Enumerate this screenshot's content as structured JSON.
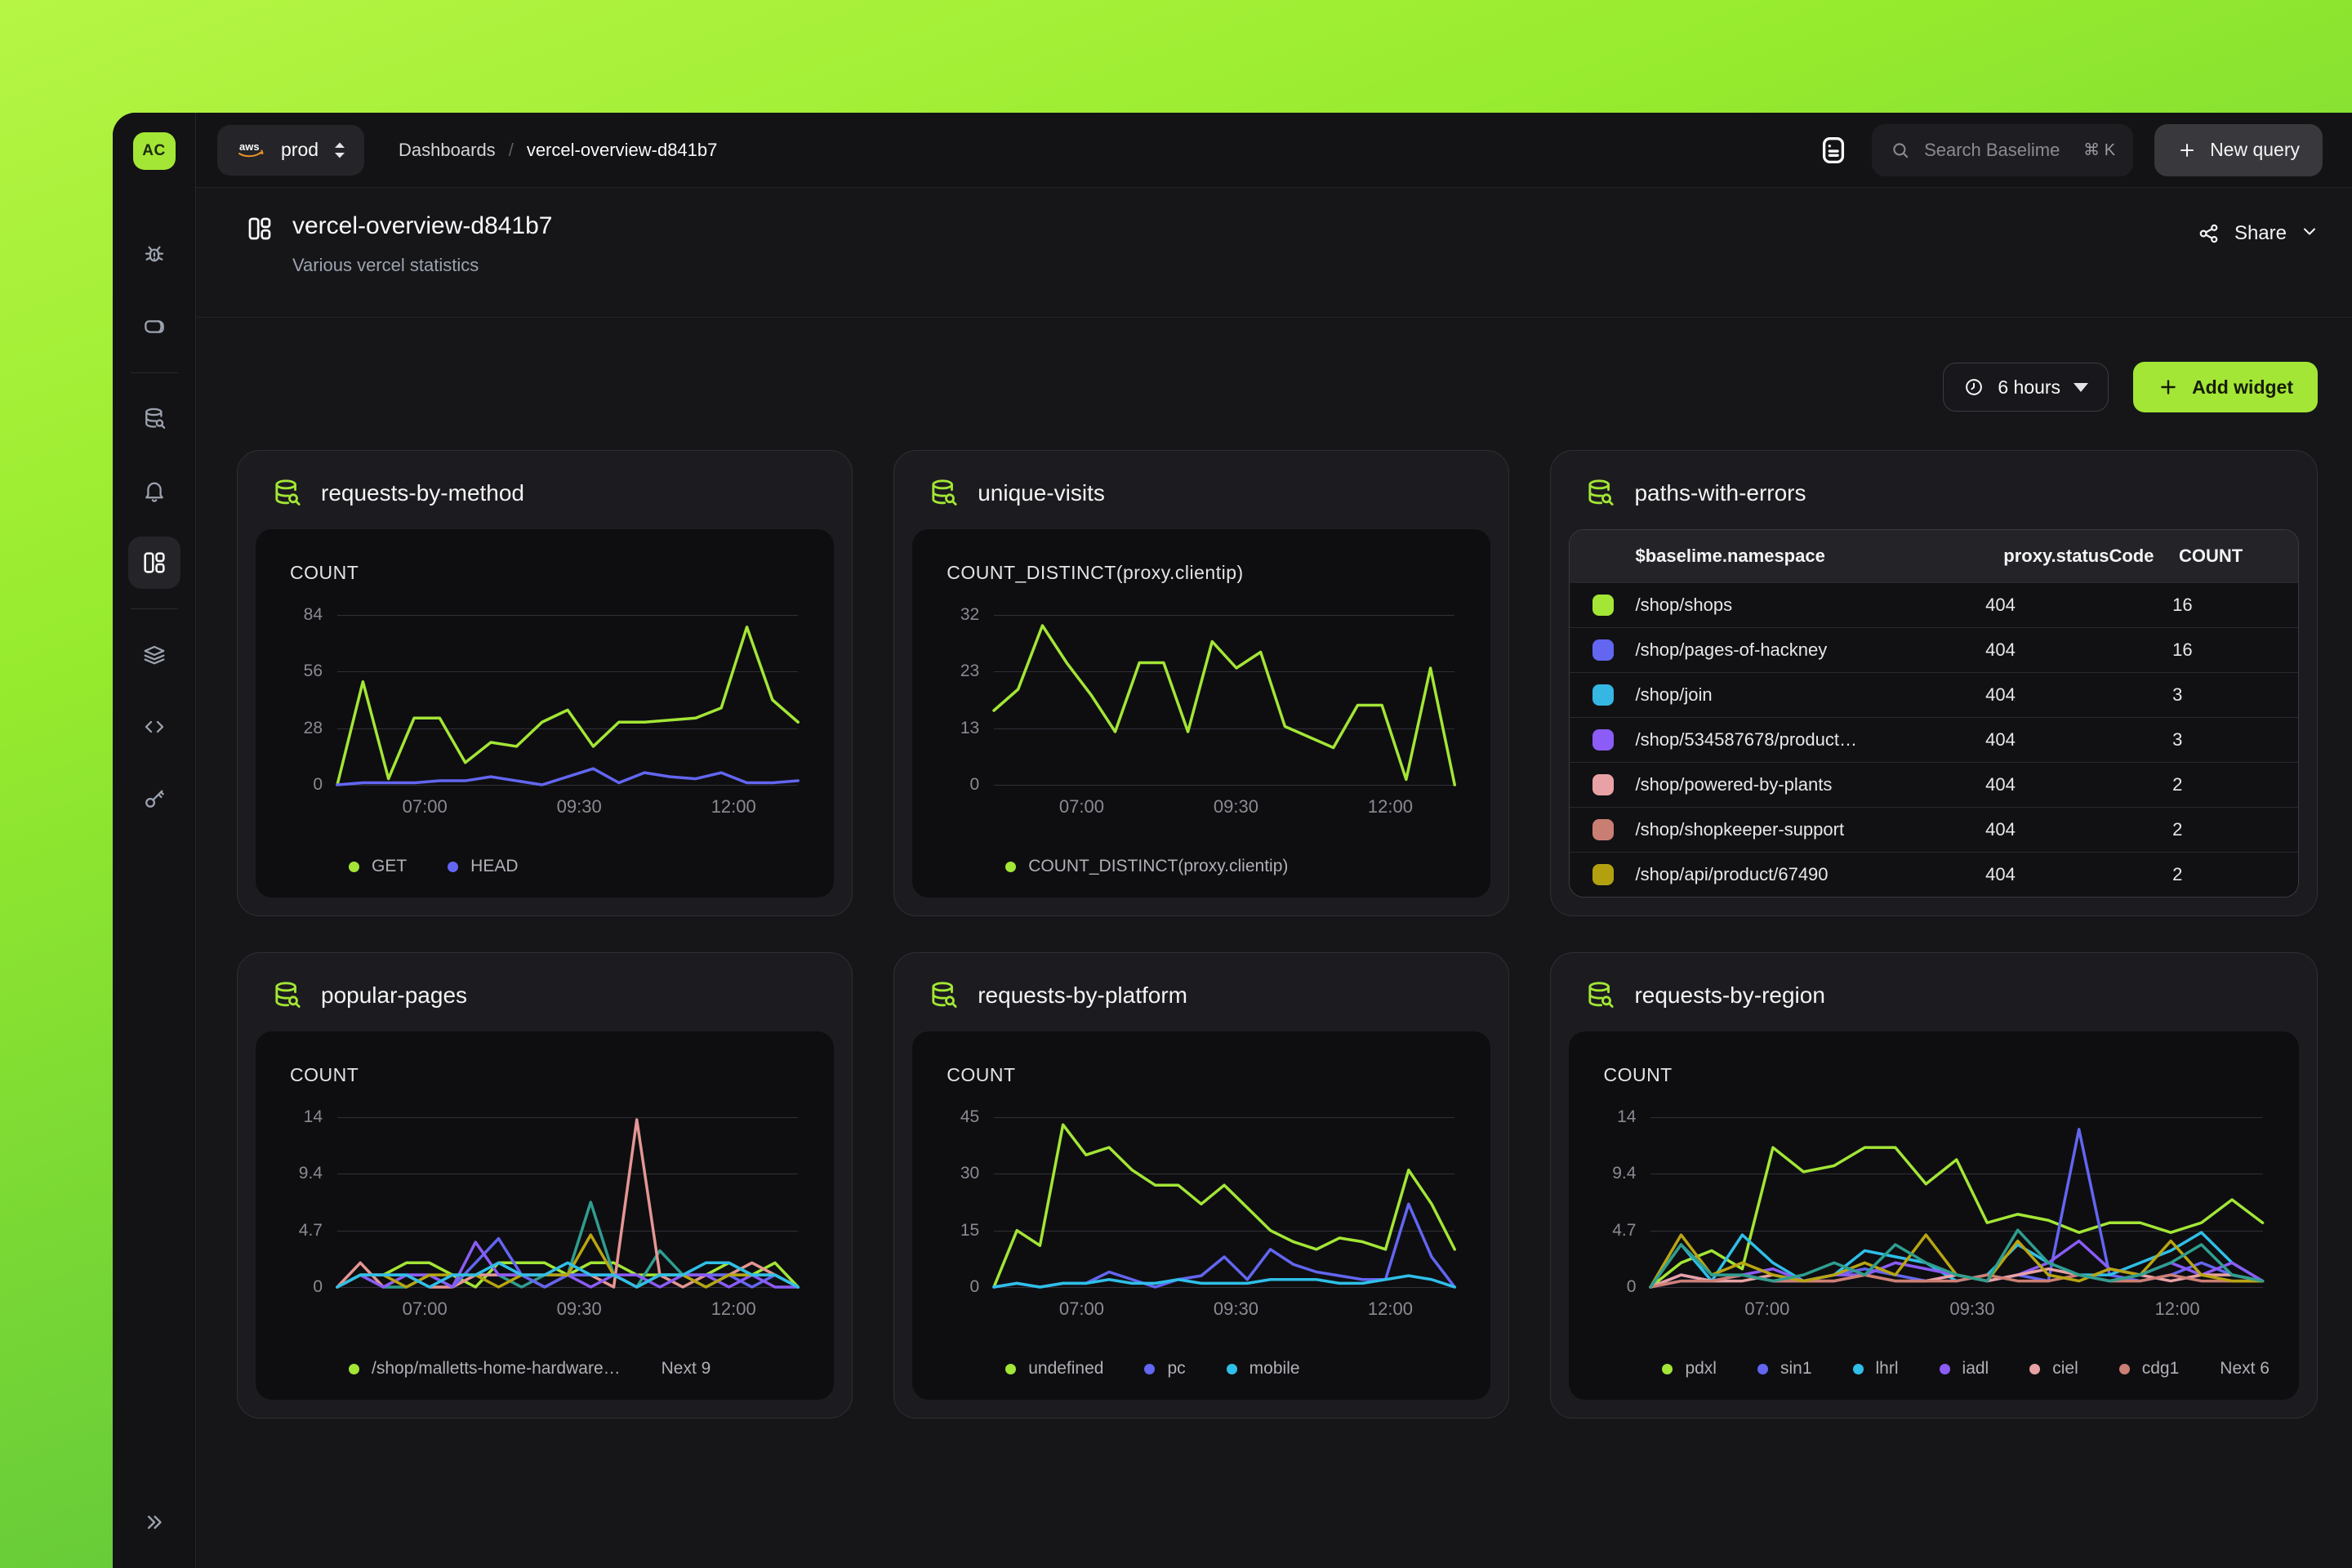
{
  "accent": "#a3e635",
  "sidebar": {
    "avatar": "AC",
    "icons": [
      "bug-icon",
      "box-icon",
      "database-search-icon",
      "bell-icon",
      "dashboards-icon",
      "layers-icon",
      "code-icon",
      "key-icon",
      "expand-icon"
    ]
  },
  "topbar": {
    "env": "prod",
    "breadcrumb": {
      "root": "Dashboards",
      "separator": "/",
      "current": "vercel-overview-d841b7"
    },
    "search": {
      "placeholder": "Search Baselime",
      "shortcut": "⌘ K"
    },
    "new_query_label": "New query"
  },
  "dashboard": {
    "title": "vercel-overview-d841b7",
    "subtitle": "Various vercel statistics",
    "share_label": "Share",
    "time_range": "6 hours",
    "add_widget_label": "Add widget"
  },
  "widgets": [
    {
      "title": "requests-by-method",
      "type": "line",
      "chart_data": {
        "type": "line",
        "metric": "COUNT",
        "y_ticks": [
          "84",
          "56",
          "28",
          "0"
        ],
        "ymax": 84,
        "x_ticks": [
          {
            "label": "07:00",
            "f": 0.19
          },
          {
            "label": "09:30",
            "f": 0.525
          },
          {
            "label": "12:00",
            "f": 0.86
          }
        ],
        "legend_extra": null,
        "series": [
          {
            "name": "GET",
            "color": "#a3e635",
            "in_legend": true,
            "values": [
              0,
              51,
              3,
              33,
              33,
              11,
              21,
              19,
              31,
              37,
              19,
              31,
              31,
              32,
              33,
              38,
              78,
              42,
              31
            ]
          },
          {
            "name": "HEAD",
            "color": "#6366f1",
            "in_legend": true,
            "values": [
              0,
              1,
              1,
              1,
              2,
              2,
              4,
              2,
              0,
              4,
              8,
              1,
              6,
              4,
              3,
              6,
              1,
              1,
              2
            ]
          }
        ]
      }
    },
    {
      "title": "unique-visits",
      "type": "line",
      "chart_data": {
        "type": "line",
        "metric": "COUNT_DISTINCT(proxy.clientip)",
        "y_ticks": [
          "32",
          "23",
          "13",
          "0"
        ],
        "ymax": 32,
        "x_ticks": [
          {
            "label": "07:00",
            "f": 0.19
          },
          {
            "label": "09:30",
            "f": 0.525
          },
          {
            "label": "12:00",
            "f": 0.86
          }
        ],
        "legend_extra": null,
        "series": [
          {
            "name": "COUNT_DISTINCT(proxy.clientip)",
            "color": "#a3e635",
            "in_legend": true,
            "values": [
              14,
              18,
              30,
              23,
              17,
              10,
              23,
              23,
              10,
              27,
              22,
              25,
              11,
              9,
              7,
              15,
              15,
              1,
              22,
              0
            ]
          }
        ]
      }
    },
    {
      "title": "paths-with-errors",
      "type": "table",
      "table": {
        "columns": [
          "$baselime.namespace",
          "proxy.statusCode",
          "COUNT"
        ],
        "rows": [
          {
            "color": "#a3e635",
            "namespace": "/shop/shops",
            "statusCode": "404",
            "count": "16"
          },
          {
            "color": "#6366f1",
            "namespace": "/shop/pages-of-hackney",
            "statusCode": "404",
            "count": "16"
          },
          {
            "color": "#35b6e3",
            "namespace": "/shop/join",
            "statusCode": "404",
            "count": "3"
          },
          {
            "color": "#8b5cf6",
            "namespace": "/shop/534587678/product…",
            "statusCode": "404",
            "count": "3"
          },
          {
            "color": "#e8a2a5",
            "namespace": "/shop/powered-by-plants",
            "statusCode": "404",
            "count": "2"
          },
          {
            "color": "#c97e73",
            "namespace": "/shop/shopkeeper-support",
            "statusCode": "404",
            "count": "2"
          },
          {
            "color": "#b3a00f",
            "namespace": "/shop/api/product/67490",
            "statusCode": "404",
            "count": "2"
          }
        ]
      }
    },
    {
      "title": "popular-pages",
      "type": "line",
      "chart_data": {
        "type": "line",
        "metric": "COUNT",
        "y_ticks": [
          "14",
          "9.4",
          "4.7",
          "0"
        ],
        "ymax": 14,
        "x_ticks": [
          {
            "label": "07:00",
            "f": 0.19
          },
          {
            "label": "09:30",
            "f": 0.525
          },
          {
            "label": "12:00",
            "f": 0.86
          }
        ],
        "legend_extra": "Next 9",
        "series": [
          {
            "name": "/shop/malletts-home-hardware…",
            "color": "#a3e635",
            "in_legend": true,
            "values": [
              0,
              1,
              1,
              2,
              2,
              1,
              0,
              2,
              2,
              2,
              1,
              2,
              2,
              1,
              1,
              1,
              1,
              2,
              1,
              2,
              0
            ]
          },
          {
            "name": "",
            "color": "#2f9e8f",
            "in_legend": false,
            "values": [
              0,
              1,
              0,
              0,
              1,
              0,
              1,
              1,
              0,
              1,
              1,
              7,
              1,
              0,
              3,
              1,
              0,
              1,
              1,
              1,
              0
            ]
          },
          {
            "name": "",
            "color": "#e59693",
            "in_legend": false,
            "values": [
              0,
              2,
              0,
              1,
              0,
              0,
              1,
              1,
              1,
              0,
              1,
              1,
              0,
              13.8,
              1,
              0,
              1,
              1,
              2,
              1,
              0
            ]
          },
          {
            "name": "",
            "color": "#6366f1",
            "in_legend": false,
            "values": [
              0,
              1,
              1,
              1,
              1,
              0,
              2,
              4,
              1,
              0,
              1,
              1,
              1,
              0,
              1,
              1,
              1,
              1,
              0,
              1,
              0
            ]
          },
          {
            "name": "",
            "color": "#8b5cf6",
            "in_legend": false,
            "values": [
              0,
              1,
              0,
              1,
              1,
              0,
              3.7,
              1,
              1,
              1,
              1,
              0,
              1,
              1,
              0,
              1,
              1,
              0,
              1,
              0,
              0
            ]
          },
          {
            "name": "",
            "color": "#b8a512",
            "in_legend": false,
            "values": [
              0,
              1,
              1,
              0,
              1,
              1,
              1,
              0,
              1,
              1,
              1,
              4.3,
              1,
              0,
              1,
              1,
              0,
              1,
              1,
              1,
              0
            ]
          },
          {
            "name": "",
            "color": "#2fbfe8",
            "in_legend": false,
            "values": [
              0,
              1,
              1,
              1,
              0,
              1,
              1,
              2,
              1,
              1,
              2,
              1,
              1,
              0,
              1,
              1,
              2,
              2,
              1,
              1,
              0
            ]
          }
        ]
      }
    },
    {
      "title": "requests-by-platform",
      "type": "line",
      "chart_data": {
        "type": "line",
        "metric": "COUNT",
        "y_ticks": [
          "45",
          "30",
          "15",
          "0"
        ],
        "ymax": 45,
        "x_ticks": [
          {
            "label": "07:00",
            "f": 0.19
          },
          {
            "label": "09:30",
            "f": 0.525
          },
          {
            "label": "12:00",
            "f": 0.86
          }
        ],
        "legend_extra": null,
        "series": [
          {
            "name": "undefined",
            "color": "#a3e635",
            "in_legend": true,
            "values": [
              0,
              15,
              11,
              43,
              35,
              37,
              31,
              27,
              27,
              22,
              27,
              21,
              15,
              12,
              10,
              13,
              12,
              10,
              31,
              22,
              10
            ]
          },
          {
            "name": "pc",
            "color": "#6366f1",
            "in_legend": true,
            "values": [
              0,
              1,
              0,
              1,
              1,
              4,
              2,
              0,
              2,
              3,
              8,
              2,
              10,
              6,
              4,
              3,
              2,
              2,
              22,
              8,
              0
            ]
          },
          {
            "name": "mobile",
            "color": "#2fbfe8",
            "in_legend": true,
            "values": [
              0,
              1,
              0,
              1,
              1,
              2,
              1,
              1,
              2,
              1,
              1,
              1,
              2,
              2,
              2,
              1,
              1,
              2,
              3,
              2,
              0
            ]
          }
        ]
      }
    },
    {
      "title": "requests-by-region",
      "type": "line",
      "chart_data": {
        "type": "line",
        "metric": "COUNT",
        "y_ticks": [
          "14",
          "9.4",
          "4.7",
          "0"
        ],
        "ymax": 14,
        "x_ticks": [
          {
            "label": "07:00",
            "f": 0.19
          },
          {
            "label": "09:30",
            "f": 0.525
          },
          {
            "label": "12:00",
            "f": 0.86
          }
        ],
        "legend_extra": "Next 6",
        "series": [
          {
            "name": "pdxl",
            "color": "#a3e635",
            "in_legend": true,
            "values": [
              0,
              2,
              3,
              1.5,
              11.5,
              9.5,
              10,
              11.5,
              11.5,
              8.5,
              10.5,
              5.3,
              6,
              5.5,
              4.5,
              5.3,
              5.3,
              4.5,
              5.3,
              7.2,
              5.3
            ]
          },
          {
            "name": "sin1",
            "color": "#6366f1",
            "in_legend": true,
            "values": [
              0,
              0.5,
              0.5,
              1,
              0.5,
              0.5,
              1,
              1.5,
              1,
              0.5,
              1,
              0.5,
              1,
              0.5,
              13,
              1,
              0.5,
              1,
              2,
              1,
              0.5
            ]
          },
          {
            "name": "lhrl",
            "color": "#2fbfe8",
            "in_legend": true,
            "values": [
              0,
              3.5,
              0.5,
              4.3,
              2,
              0.5,
              1,
              3,
              2.5,
              2,
              0.5,
              1,
              3.5,
              2,
              1,
              1,
              2,
              3,
              4.5,
              2,
              0.5
            ]
          },
          {
            "name": "iadl",
            "color": "#8b5cf6",
            "in_legend": true,
            "values": [
              0,
              1,
              0.5,
              1,
              1.5,
              0.5,
              1,
              1,
              2,
              1.5,
              1,
              0.5,
              1,
              2,
              3.8,
              1.5,
              1,
              2,
              1,
              2,
              0.5
            ]
          },
          {
            "name": "ciel",
            "color": "#e8a2a5",
            "in_legend": true,
            "values": [
              0,
              1,
              0.5,
              0.5,
              1,
              0.5,
              0.5,
              1,
              0.5,
              0.5,
              1,
              0.5,
              1,
              1.5,
              1,
              0.5,
              1,
              0.5,
              1,
              1,
              0.5
            ]
          },
          {
            "name": "cdg1",
            "color": "#cd7f74",
            "in_legend": true,
            "values": [
              0,
              0.5,
              0.5,
              1,
              0.5,
              0.5,
              0.5,
              1,
              0.5,
              0.5,
              0.5,
              1,
              0.5,
              0.5,
              1,
              0.5,
              0.5,
              1,
              0.5,
              0.5,
              0.5
            ]
          },
          {
            "name": "",
            "color": "#b8a512",
            "in_legend": false,
            "values": [
              0,
              4.3,
              1,
              2,
              1,
              0.5,
              1,
              2,
              1,
              4.3,
              1,
              0.5,
              3.8,
              1,
              0.5,
              1.5,
              1,
              3.8,
              1,
              0.5,
              0.5
            ]
          },
          {
            "name": "",
            "color": "#2f9e8f",
            "in_legend": false,
            "values": [
              0,
              3.5,
              1,
              1,
              0.5,
              1,
              2,
              1,
              3.5,
              2,
              1,
              0.5,
              4.7,
              2,
              1,
              0.5,
              1,
              2,
              3.5,
              1,
              0.5
            ]
          }
        ]
      }
    }
  ]
}
